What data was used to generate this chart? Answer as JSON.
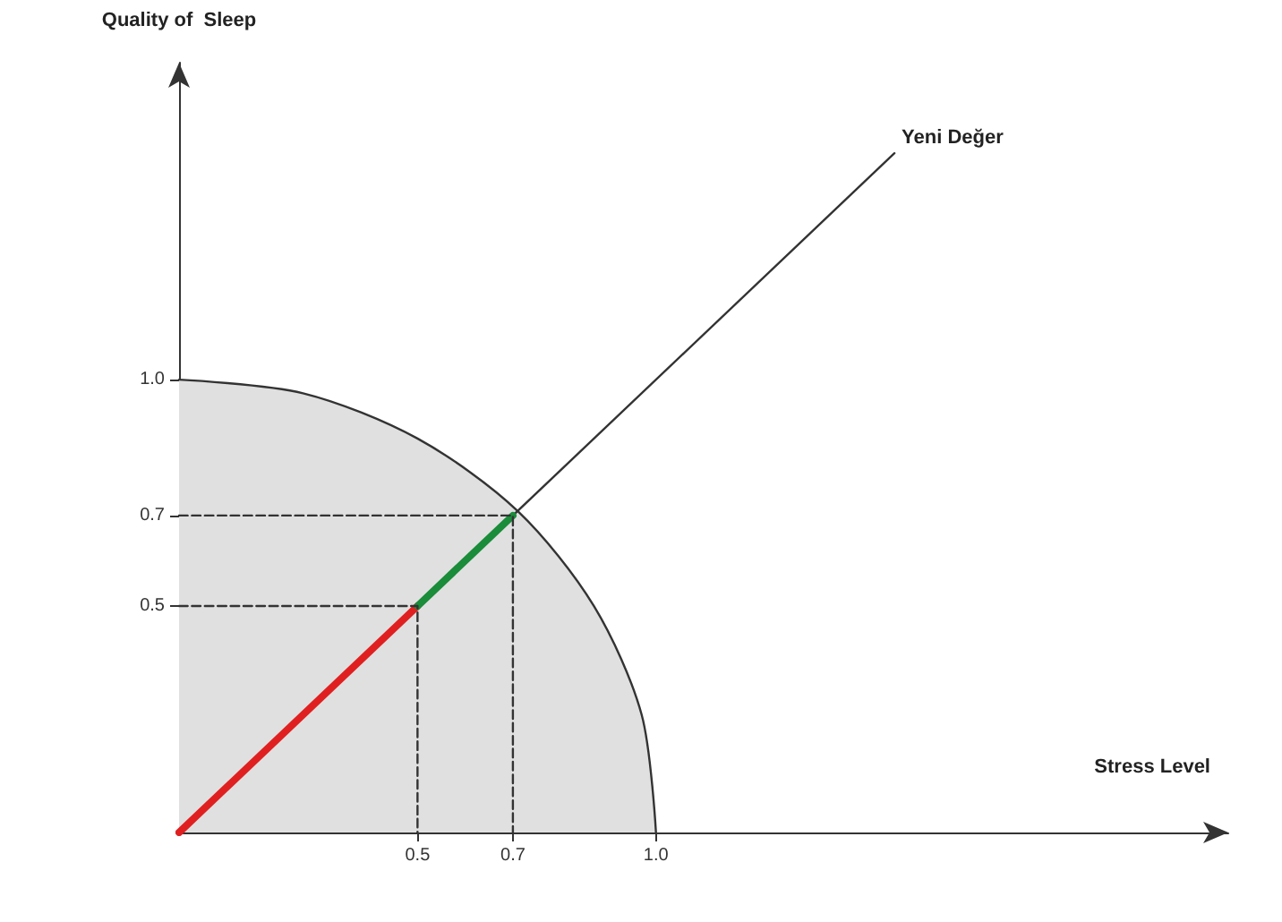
{
  "chart_data": {
    "type": "line",
    "xlabel": "Stress Level",
    "ylabel": "Quality of  Sleep",
    "x": [
      0,
      0.26,
      0.5,
      0.71,
      0.87,
      0.97,
      1
    ],
    "series": [
      {
        "type": "area",
        "color": "#333333",
        "values": [
          1,
          0.97,
          0.87,
          0.71,
          0.5,
          0.26,
          0
        ]
      },
      {
        "color": "#333333",
        "x": [
          0,
          1.5
        ],
        "values": [
          0,
          1.5
        ]
      },
      {
        "color": "#e02020",
        "x": [
          0,
          0.5
        ],
        "values": [
          0,
          0.5
        ]
      },
      {
        "color": "#1a8c3a",
        "x": [
          0.5,
          0.7
        ],
        "values": [
          0.5,
          0.7
        ]
      },
      {
        "color": "#333333",
        "line_style": "dashed",
        "x": [
          0,
          0.5,
          0.5
        ],
        "values": [
          0.5,
          0.5,
          0
        ]
      },
      {
        "color": "#333333",
        "line_style": "dashed",
        "x": [
          0,
          0.7,
          0.7
        ],
        "values": [
          0.7,
          0.7,
          0
        ]
      }
    ],
    "annotations": [
      {
        "text": "Yeni Değer",
        "x": 1.5,
        "y": 1.5
      }
    ],
    "xlim": [
      0,
      2.2
    ],
    "ylim": [
      0,
      1.7
    ],
    "xticks": [
      0.5,
      0.7,
      {
        "value": 1,
        "label": "1.0"
      }
    ],
    "yticks": [
      0.5,
      0.7,
      {
        "value": 1,
        "label": "1.0"
      }
    ],
    "grid": false,
    "marker": "none",
    "line_style": "solid"
  }
}
